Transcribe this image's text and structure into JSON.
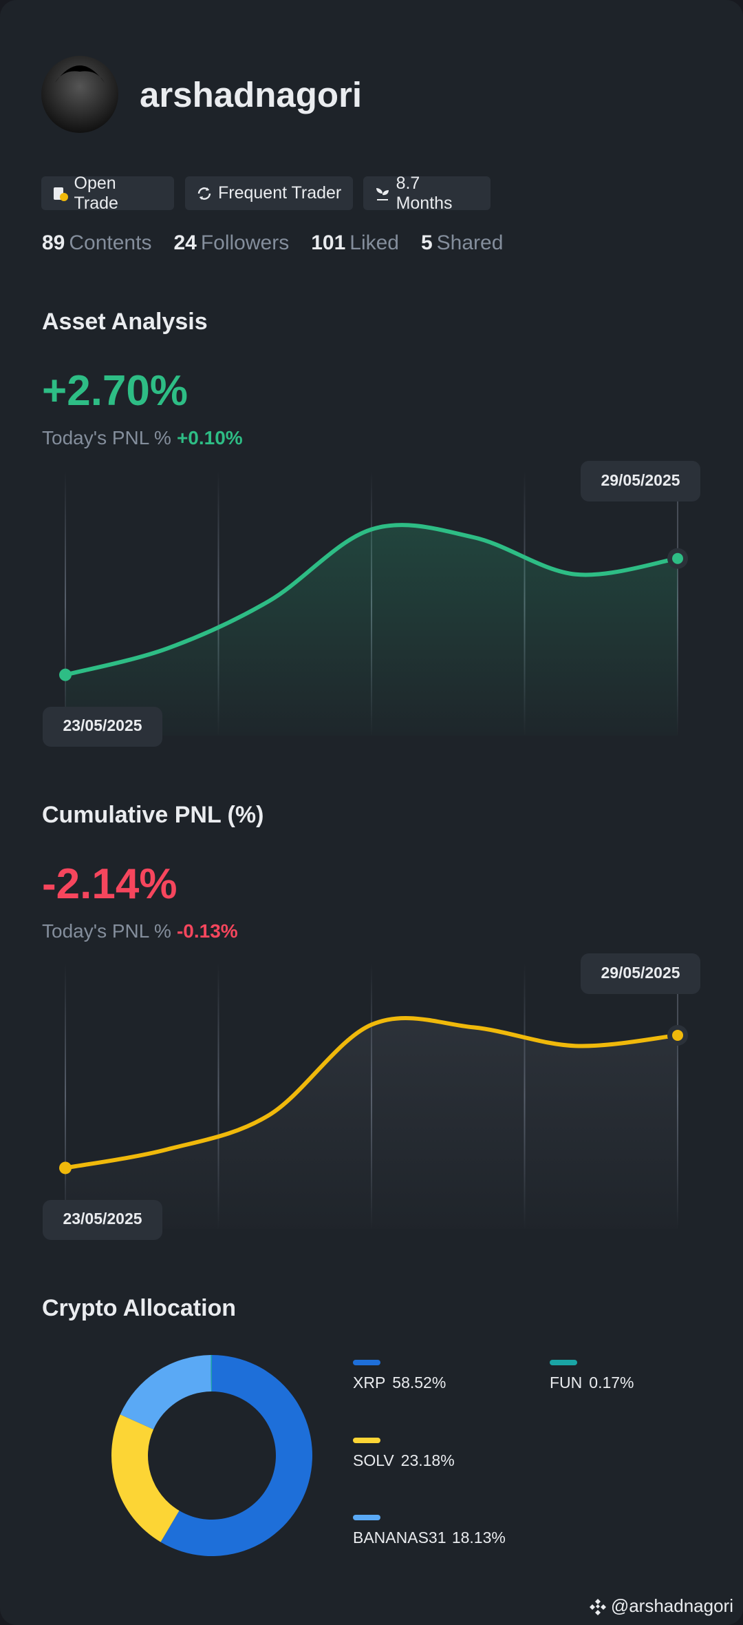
{
  "profile": {
    "username": "arshadnagori",
    "badges": [
      "Open Trade",
      "Frequent Trader",
      "8.7 Months"
    ],
    "stats": [
      {
        "value": 89,
        "label": "Contents"
      },
      {
        "value": 24,
        "label": "Followers"
      },
      {
        "value": 101,
        "label": "Liked"
      },
      {
        "value": 5,
        "label": "Shared"
      }
    ]
  },
  "chart_data": [
    {
      "type": "line",
      "title": "Asset Analysis",
      "headline": "+2.70%",
      "headline_color": "#2ebd85",
      "subtitle": "Today's PNL %",
      "subtitle_value": "+0.10%",
      "x": [
        "23/05/2025",
        null,
        null,
        null,
        null,
        null,
        "29/05/2025"
      ],
      "series": [
        {
          "color": "#2ebd85",
          "values": [
            23,
            33,
            51,
            78,
            75,
            61,
            67
          ]
        }
      ],
      "ylim": [
        0,
        100
      ],
      "area_color": "#2ebd85"
    },
    {
      "type": "line",
      "title": "Cumulative PNL (%)",
      "headline": "-2.14%",
      "headline_color": "#f6465d",
      "subtitle": "Today's PNL %",
      "subtitle_value": "-0.13%",
      "x": [
        "23/05/2025",
        null,
        null,
        null,
        null,
        null,
        "29/05/2025"
      ],
      "series": [
        {
          "color": "#f0b90b",
          "values": [
            23,
            30,
            43,
            77,
            76,
            69,
            73
          ]
        }
      ],
      "ylim": [
        0,
        100
      ],
      "area_color": "#5e6673"
    },
    {
      "type": "pie",
      "title": "Crypto Allocation",
      "categories": [
        "XRP",
        "SOLV",
        "BANANAS31",
        "FUN"
      ],
      "values": [
        58.52,
        23.18,
        18.13,
        0.17
      ],
      "value_labels": [
        "58.52%",
        "23.18%",
        "18.13%",
        "0.17%"
      ],
      "colors": [
        "#1e6fd9",
        "#fcd535",
        "#5aa9f5",
        "#1aa5a5"
      ]
    }
  ],
  "footer": "@arshadnagori"
}
